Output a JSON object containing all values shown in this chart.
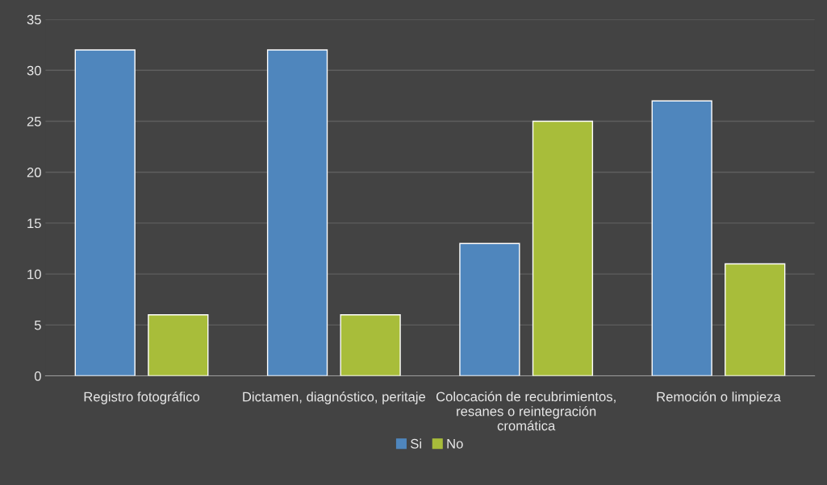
{
  "chart_data": {
    "type": "bar",
    "categories": [
      "Registro fotográfico",
      "Dictamen, diagnóstico, peritaje",
      "Colocación de recubrimientos,\nresanes o reintegración\ncromática",
      "Remoción o limpieza"
    ],
    "series": [
      {
        "name": "Si",
        "color": "#4f86bd",
        "values": [
          32,
          32,
          13,
          27
        ]
      },
      {
        "name": "No",
        "color": "#a8bd3a",
        "values": [
          6,
          6,
          25,
          11
        ]
      }
    ],
    "ylim": [
      0,
      35
    ],
    "yticks": [
      0,
      5,
      10,
      15,
      20,
      25,
      30,
      35
    ],
    "grid": "y",
    "legend": "bottom"
  }
}
